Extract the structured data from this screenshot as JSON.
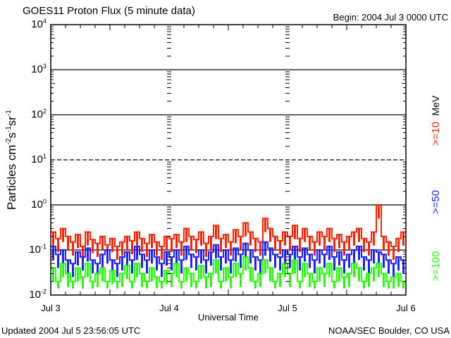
{
  "chart_data": {
    "type": "line",
    "title": "GOES11 Proton Flux (5 minute data)",
    "begin_label": "Begin: 2004 Jul 3 0000 UTC",
    "xlabel": "Universal Time",
    "ylabel": "Particles cm",
    "ylabel_sup": [
      "-2",
      "-1",
      "-1"
    ],
    "ylabel_parts": [
      "s",
      "sr"
    ],
    "yscale": "log",
    "ylim": [
      0.01,
      10000
    ],
    "ytick_exponents": [
      "4",
      "3",
      "2",
      "1",
      "0",
      "-1",
      "-2"
    ],
    "xlim_hours": [
      0,
      72
    ],
    "xticks": [
      "Jul 3",
      "Jul 4",
      "Jul 5",
      "Jul 6"
    ],
    "unit_label": "MeV",
    "footer_left": "Updated 2004 Jul  5 23:56:05 UTC",
    "footer_right": "NOAA/SEC Boulder, CO USA",
    "x_step_hours": 1,
    "series": [
      {
        "name": ">=10",
        "color": "#ff2000",
        "values": [
          0.25,
          0.18,
          0.3,
          0.2,
          0.15,
          0.22,
          0.12,
          0.25,
          0.17,
          0.14,
          0.2,
          0.13,
          0.18,
          0.12,
          0.15,
          0.2,
          0.16,
          0.25,
          0.18,
          0.14,
          0.22,
          0.15,
          0.12,
          0.2,
          0.18,
          0.22,
          0.15,
          0.3,
          0.2,
          0.17,
          0.25,
          0.14,
          0.2,
          0.35,
          0.18,
          0.22,
          0.15,
          0.28,
          0.2,
          0.4,
          0.25,
          0.18,
          0.15,
          0.5,
          0.3,
          0.2,
          0.16,
          0.25,
          0.2,
          0.35,
          0.18,
          0.3,
          0.2,
          0.15,
          0.25,
          0.2,
          0.3,
          0.18,
          0.22,
          0.15,
          0.2,
          0.25,
          0.3,
          0.18,
          0.15,
          0.25,
          1.0,
          0.2,
          0.15,
          0.12,
          0.18,
          0.25
        ]
      },
      {
        "name": ">=50",
        "color": "#2020ff",
        "values": [
          0.12,
          0.08,
          0.1,
          0.06,
          0.05,
          0.09,
          0.07,
          0.11,
          0.06,
          0.05,
          0.08,
          0.1,
          0.06,
          0.05,
          0.07,
          0.09,
          0.06,
          0.12,
          0.08,
          0.06,
          0.1,
          0.07,
          0.05,
          0.09,
          0.07,
          0.1,
          0.06,
          0.12,
          0.08,
          0.07,
          0.1,
          0.06,
          0.09,
          0.13,
          0.07,
          0.1,
          0.06,
          0.11,
          0.08,
          0.14,
          0.1,
          0.07,
          0.06,
          0.15,
          0.11,
          0.08,
          0.07,
          0.1,
          0.08,
          0.12,
          0.07,
          0.11,
          0.08,
          0.06,
          0.1,
          0.08,
          0.12,
          0.07,
          0.09,
          0.06,
          0.08,
          0.1,
          0.12,
          0.07,
          0.06,
          0.1,
          0.09,
          0.08,
          0.06,
          0.05,
          0.07,
          0.06
        ]
      },
      {
        "name": ">=100",
        "color": "#20ff00",
        "values": [
          0.04,
          0.02,
          0.05,
          0.03,
          0.02,
          0.04,
          0.025,
          0.05,
          0.02,
          0.03,
          0.04,
          0.02,
          0.035,
          0.02,
          0.03,
          0.045,
          0.02,
          0.05,
          0.03,
          0.02,
          0.04,
          0.025,
          0.02,
          0.035,
          0.03,
          0.05,
          0.02,
          0.04,
          0.03,
          0.02,
          0.045,
          0.025,
          0.03,
          0.06,
          0.02,
          0.04,
          0.025,
          0.05,
          0.03,
          0.07,
          0.04,
          0.02,
          0.03,
          0.06,
          0.04,
          0.02,
          0.03,
          0.05,
          0.03,
          0.06,
          0.02,
          0.05,
          0.03,
          0.02,
          0.04,
          0.03,
          0.05,
          0.02,
          0.04,
          0.025,
          0.03,
          0.05,
          0.04,
          0.02,
          0.03,
          0.04,
          0.05,
          0.03,
          0.02,
          0.025,
          0.03,
          0.02
        ]
      }
    ]
  }
}
